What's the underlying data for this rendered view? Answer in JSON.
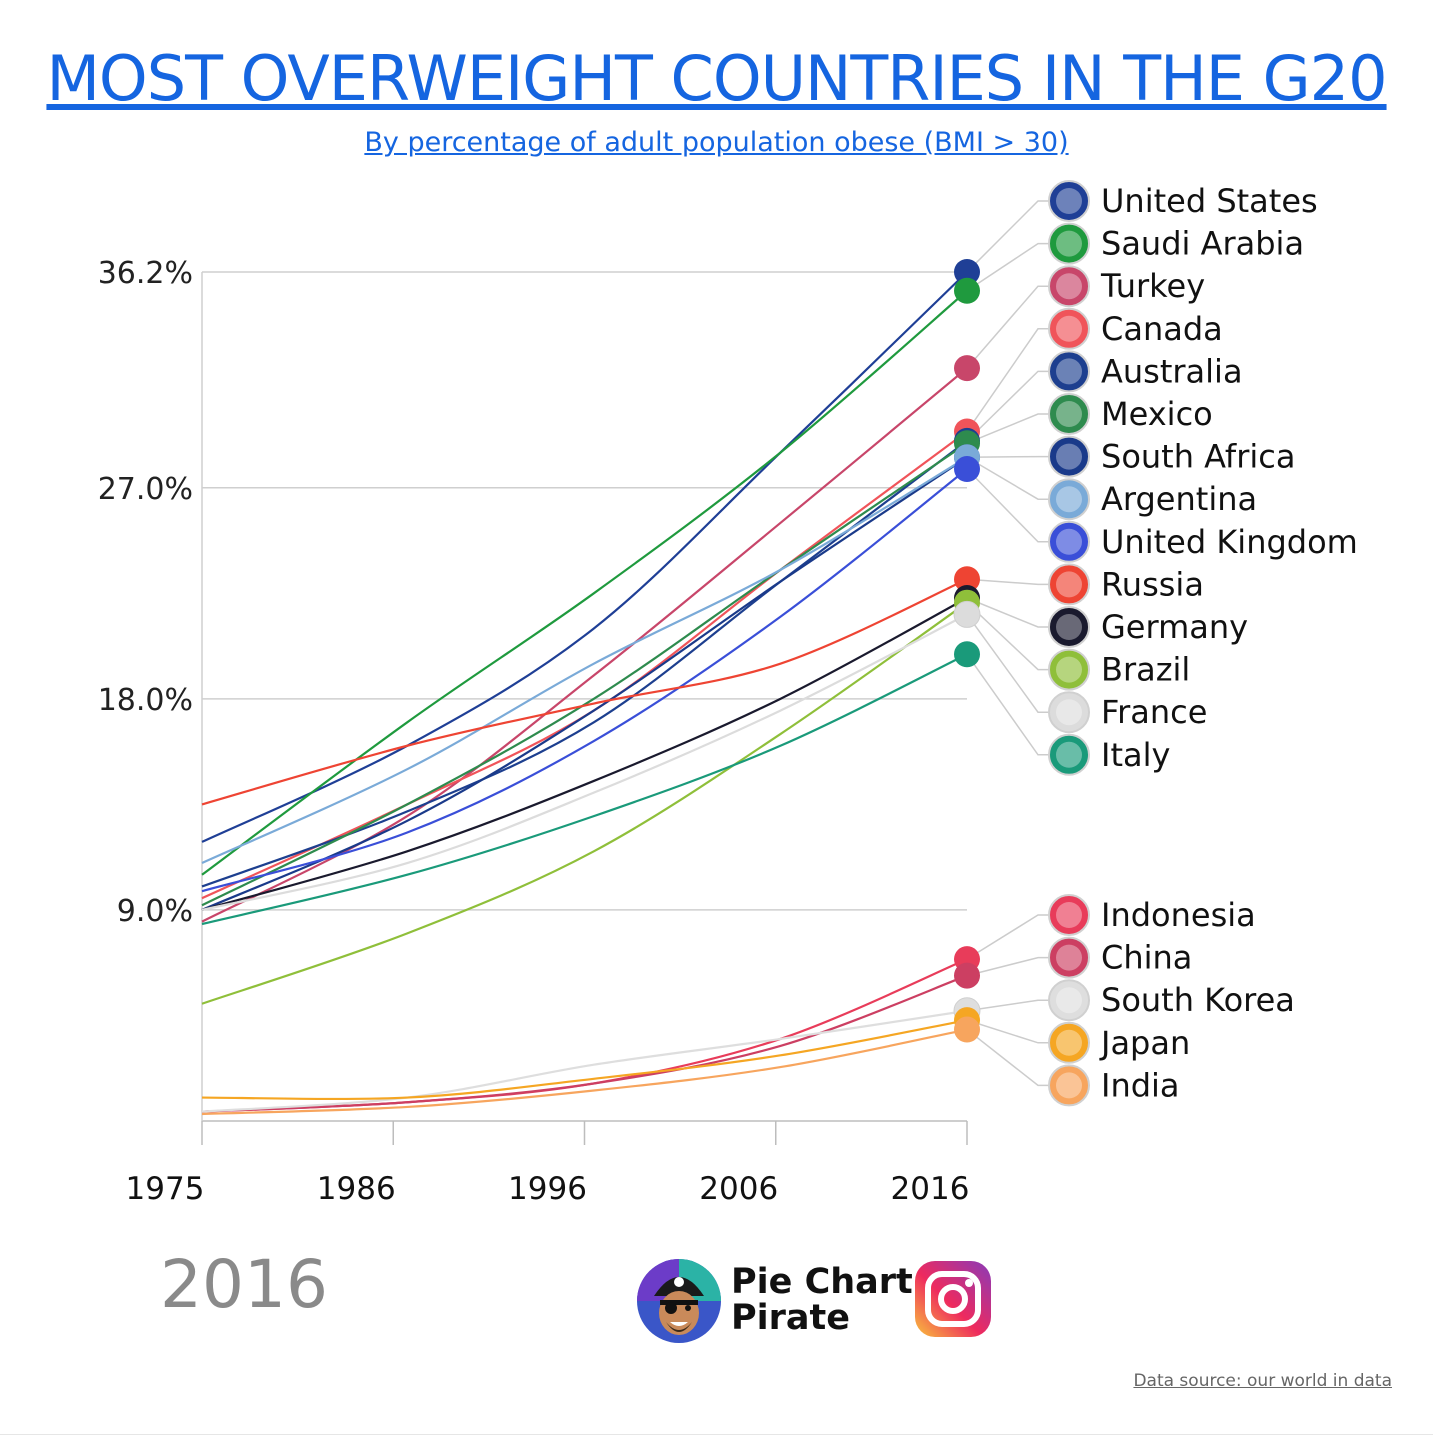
{
  "title": "MOST OVERWEIGHT COUNTRIES IN THE G20",
  "subtitle": "By percentage of adult population obese (BMI > 30)",
  "current_year": "2016",
  "brand": {
    "name": "Pie Chart\nPirate",
    "logo_icon": "pirate-avatar-icon",
    "social_icon": "instagram-icon"
  },
  "source": "Data source: our world in data",
  "chart_data": {
    "type": "line",
    "title": "MOST OVERWEIGHT COUNTRIES IN THE G20",
    "subtitle": "By percentage of adult population obese (BMI > 30)",
    "x_ticks": [
      "1975",
      "1986",
      "1996",
      "2006",
      "2016"
    ],
    "x_range": [
      1975,
      2016
    ],
    "y_ticks": [
      "9.0%",
      "18.0%",
      "27.0%",
      "36.2%"
    ],
    "y_tick_values": [
      9.0,
      18.0,
      27.0,
      36.2
    ],
    "ylim": [
      0,
      36.2
    ],
    "grid": "horizontal",
    "legend": "right, sorted by 2016 value",
    "series": [
      {
        "name": "United States",
        "color": "#1f3f96",
        "flag": "us-flag-icon",
        "points": [
          [
            1975,
            11.9
          ],
          [
            1986,
            16.0
          ],
          [
            1996,
            21.0
          ],
          [
            2006,
            28.5
          ],
          [
            2016,
            36.2
          ]
        ]
      },
      {
        "name": "Saudi Arabia",
        "color": "#1f9a3e",
        "flag": "saudi-arabia-flag-icon",
        "points": [
          [
            1975,
            10.5
          ],
          [
            1986,
            17.0
          ],
          [
            1996,
            22.5
          ],
          [
            2006,
            28.5
          ],
          [
            2016,
            35.4
          ]
        ]
      },
      {
        "name": "Turkey",
        "color": "#c8466a",
        "flag": "turkey-flag-icon",
        "points": [
          [
            1975,
            8.5
          ],
          [
            1986,
            13.0
          ],
          [
            1996,
            19.0
          ],
          [
            2006,
            25.5
          ],
          [
            2016,
            32.1
          ]
        ]
      },
      {
        "name": "Canada",
        "color": "#f0545a",
        "flag": "canada-flag-icon",
        "points": [
          [
            1975,
            9.5
          ],
          [
            1986,
            13.5
          ],
          [
            1996,
            17.5
          ],
          [
            2006,
            23.5
          ],
          [
            2016,
            29.4
          ]
        ]
      },
      {
        "name": "Australia",
        "color": "#1d3f8f",
        "flag": "australia-flag-icon",
        "points": [
          [
            1975,
            10.0
          ],
          [
            1986,
            13.2
          ],
          [
            1996,
            17.0
          ],
          [
            2006,
            23.0
          ],
          [
            2016,
            29.0
          ]
        ]
      },
      {
        "name": "Mexico",
        "color": "#2e8b4e",
        "flag": "mexico-flag-icon",
        "points": [
          [
            1975,
            9.2
          ],
          [
            1986,
            13.5
          ],
          [
            1996,
            18.0
          ],
          [
            2006,
            23.5
          ],
          [
            2016,
            28.9
          ]
        ]
      },
      {
        "name": "South Africa",
        "color": "#1a3a8a",
        "flag": "south-africa-flag-icon",
        "points": [
          [
            1975,
            9.0
          ],
          [
            1986,
            12.8
          ],
          [
            1996,
            17.5
          ],
          [
            2006,
            23.0
          ],
          [
            2016,
            28.3
          ]
        ]
      },
      {
        "name": "Argentina",
        "color": "#7aaad8",
        "flag": "argentina-flag-icon",
        "points": [
          [
            1975,
            11.0
          ],
          [
            1986,
            15.0
          ],
          [
            1996,
            19.5
          ],
          [
            2006,
            23.5
          ],
          [
            2016,
            28.3
          ]
        ]
      },
      {
        "name": "United Kingdom",
        "color": "#3a4fd8",
        "flag": "uk-flag-icon",
        "points": [
          [
            1975,
            9.8
          ],
          [
            1986,
            12.3
          ],
          [
            1996,
            16.2
          ],
          [
            2006,
            21.5
          ],
          [
            2016,
            27.8
          ]
        ]
      },
      {
        "name": "Russia",
        "color": "#ee4433",
        "flag": "russia-flag-icon",
        "points": [
          [
            1975,
            13.5
          ],
          [
            1986,
            16.0
          ],
          [
            1996,
            17.8
          ],
          [
            2006,
            19.5
          ],
          [
            2016,
            23.1
          ]
        ]
      },
      {
        "name": "Germany",
        "color": "#1a1a2e",
        "flag": "germany-flag-icon",
        "points": [
          [
            1975,
            9.0
          ],
          [
            1986,
            11.5
          ],
          [
            1996,
            14.5
          ],
          [
            2006,
            18.0
          ],
          [
            2016,
            22.3
          ]
        ]
      },
      {
        "name": "Brazil",
        "color": "#8fbf3a",
        "flag": "brazil-flag-icon",
        "points": [
          [
            1975,
            5.0
          ],
          [
            1986,
            8.0
          ],
          [
            1996,
            11.5
          ],
          [
            2006,
            16.5
          ],
          [
            2016,
            22.1
          ]
        ]
      },
      {
        "name": "France",
        "color": "#dcdcdc",
        "flag": "france-flag-icon",
        "points": [
          [
            1975,
            9.0
          ],
          [
            1986,
            11.0
          ],
          [
            1996,
            14.0
          ],
          [
            2006,
            17.5
          ],
          [
            2016,
            21.6
          ]
        ]
      },
      {
        "name": "Italy",
        "color": "#1a9a7a",
        "flag": "italy-flag-icon",
        "points": [
          [
            1975,
            8.4
          ],
          [
            1986,
            10.5
          ],
          [
            1996,
            13.0
          ],
          [
            2006,
            16.0
          ],
          [
            2016,
            19.9
          ]
        ]
      },
      {
        "name": "Indonesia",
        "color": "#e83c5a",
        "flag": "indonesia-flag-icon",
        "points": [
          [
            1975,
            0.4
          ],
          [
            1986,
            0.8
          ],
          [
            1996,
            1.6
          ],
          [
            2006,
            3.5
          ],
          [
            2016,
            6.9
          ]
        ]
      },
      {
        "name": "China",
        "color": "#cc3f62",
        "flag": "china-flag-icon",
        "points": [
          [
            1975,
            0.4
          ],
          [
            1986,
            0.8
          ],
          [
            1996,
            1.6
          ],
          [
            2006,
            3.2
          ],
          [
            2016,
            6.2
          ]
        ]
      },
      {
        "name": "South Korea",
        "color": "#dedede",
        "flag": "south-korea-flag-icon",
        "points": [
          [
            1975,
            0.4
          ],
          [
            1986,
            1.0
          ],
          [
            1996,
            2.4
          ],
          [
            2006,
            3.5
          ],
          [
            2016,
            4.7
          ]
        ]
      },
      {
        "name": "Japan",
        "color": "#f5a623",
        "flag": "japan-flag-icon",
        "points": [
          [
            1975,
            1.0
          ],
          [
            1986,
            1.0
          ],
          [
            1996,
            1.8
          ],
          [
            2006,
            2.8
          ],
          [
            2016,
            4.3
          ]
        ]
      },
      {
        "name": "India",
        "color": "#f7a55e",
        "flag": "india-flag-icon",
        "points": [
          [
            1975,
            0.3
          ],
          [
            1986,
            0.6
          ],
          [
            1996,
            1.3
          ],
          [
            2006,
            2.3
          ],
          [
            2016,
            3.9
          ]
        ]
      }
    ]
  }
}
